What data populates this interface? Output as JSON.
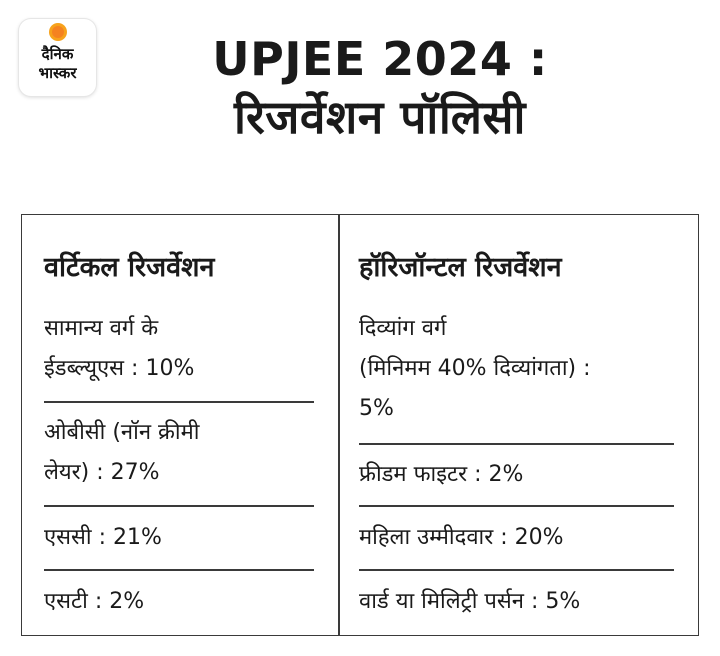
{
  "logo": {
    "line1": "दैनिक",
    "line2": "भास्कर"
  },
  "title": {
    "line1": "UPJEE 2024 :",
    "line2": "रिजर्वेशन पॉलिसी"
  },
  "vertical": {
    "heading": "वर्टिकल रिजर्वेशन",
    "items": [
      {
        "line1": "सामान्य वर्ग के",
        "line2": "ईडब्ल्यूएस : 10%"
      },
      {
        "line1": "ओबीसी (नॉन क्रीमी",
        "line2": "लेयर) : 27%"
      },
      {
        "line1": "एससी : 21%"
      },
      {
        "line1": "एसटी : 2%"
      }
    ]
  },
  "horizontal": {
    "heading": "हॉरिजॉन्टल रिजर्वेशन",
    "items": [
      {
        "line1": "दिव्यांग वर्ग",
        "line2": "(मिनिमम 40% दिव्यांगता) :",
        "line3": "5%"
      },
      {
        "line1": "फ्रीडम फाइटर : 2%"
      },
      {
        "line1": "महिला उम्मीदवार : 20%"
      },
      {
        "line1": "वार्ड या मिलिट्री पर्सन : 5%"
      }
    ]
  }
}
